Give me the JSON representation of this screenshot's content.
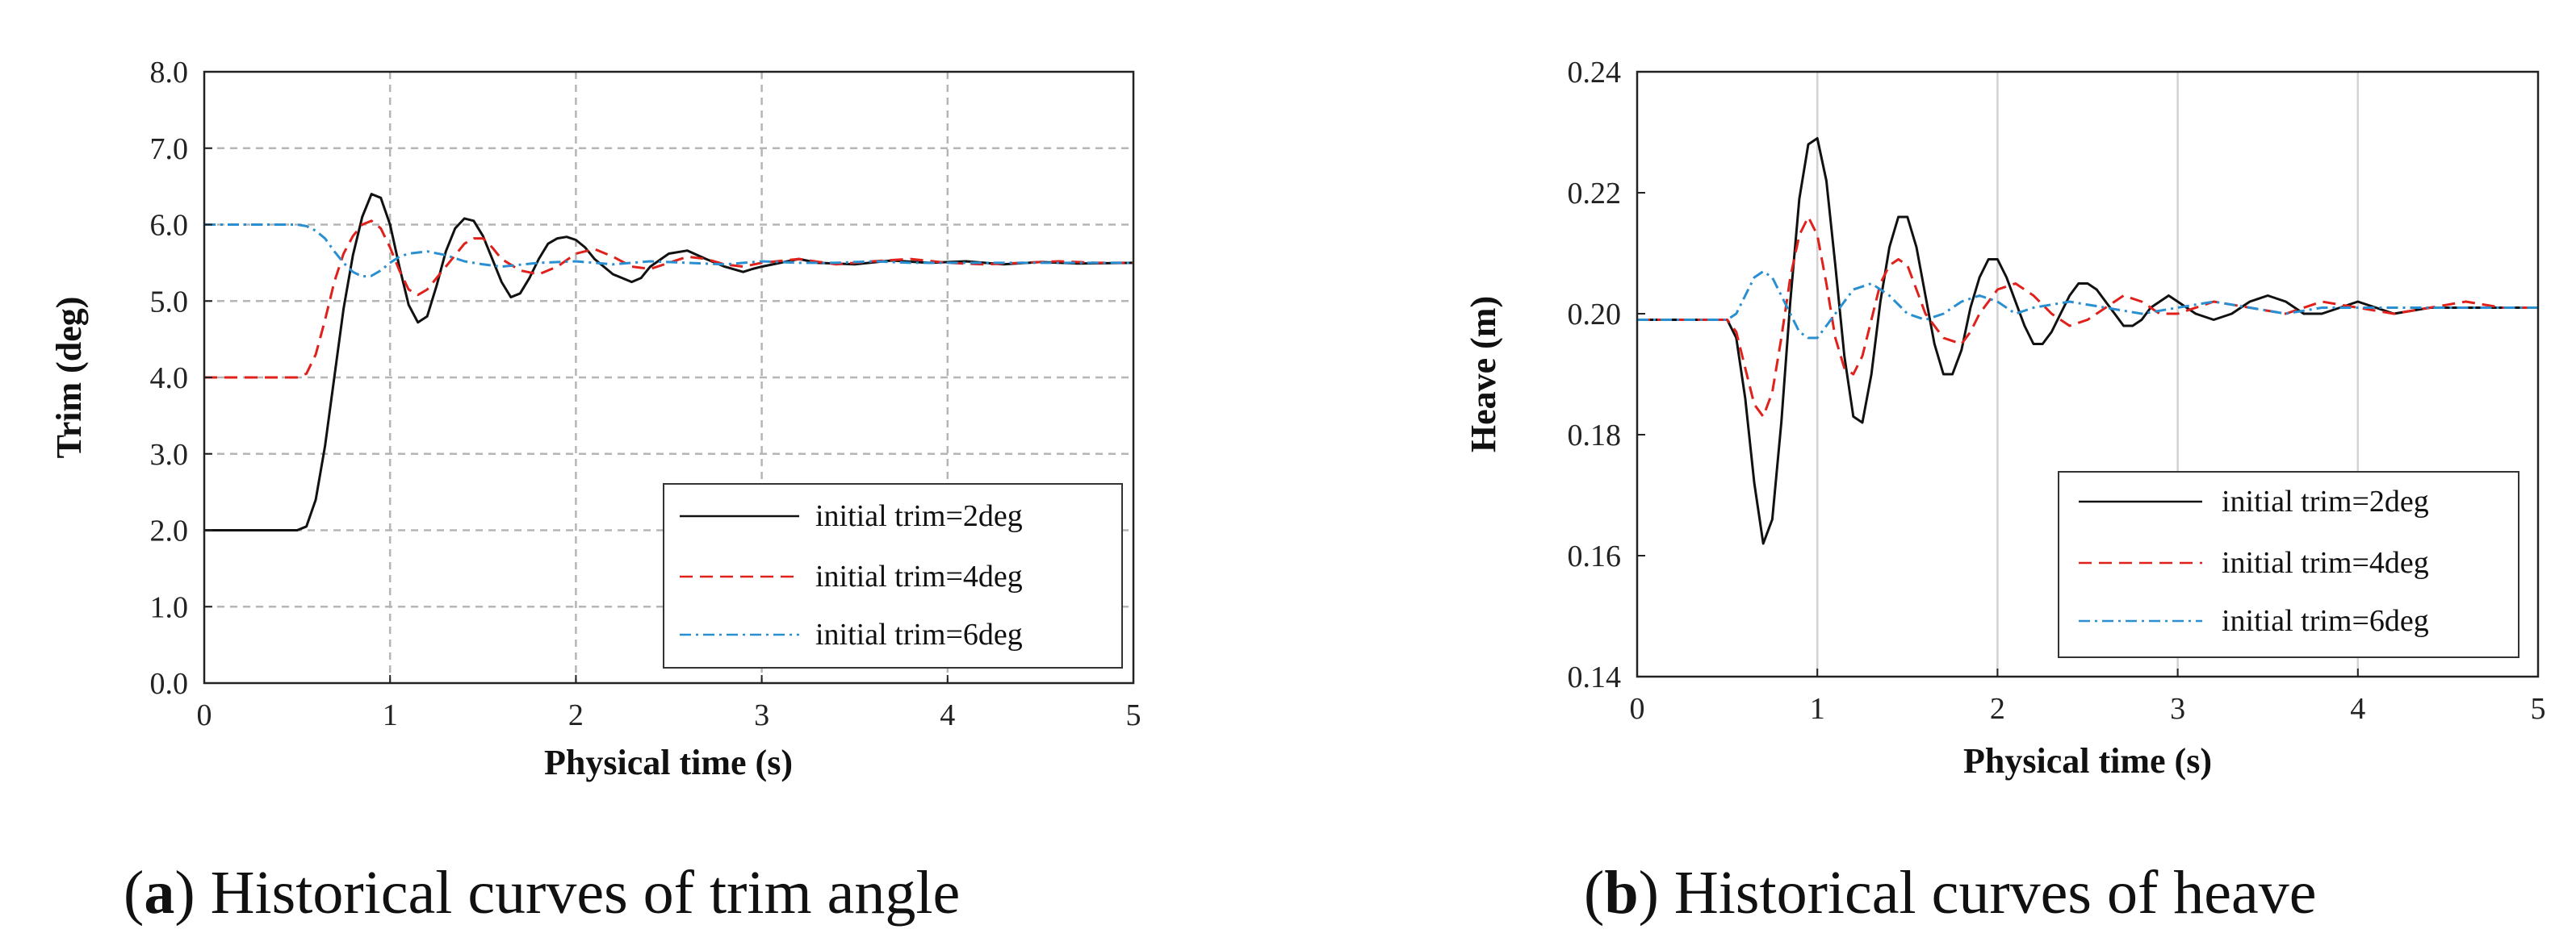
{
  "chart_data": [
    {
      "id": "a",
      "type": "line",
      "caption_letter": "a",
      "caption_text": "Historical curves of trim angle",
      "xlabel": "Physical time (s)",
      "ylabel": "Trim (deg)",
      "xlim": [
        0,
        5
      ],
      "ylim": [
        0,
        8
      ],
      "xticks": [
        "0",
        "1",
        "2",
        "3",
        "4",
        "5"
      ],
      "yticks": [
        "0.0",
        "1.0",
        "2.0",
        "3.0",
        "4.0",
        "5.0",
        "6.0",
        "7.0",
        "8.0"
      ],
      "grid": true,
      "legend_position": "bottom-right",
      "series": [
        {
          "name": "initial trim=2deg",
          "color": "#111111",
          "dash": "solid",
          "x": [
            0,
            0.5,
            0.55,
            0.6,
            0.65,
            0.7,
            0.75,
            0.8,
            0.85,
            0.9,
            0.95,
            1.0,
            1.05,
            1.1,
            1.15,
            1.2,
            1.25,
            1.3,
            1.35,
            1.4,
            1.45,
            1.5,
            1.55,
            1.6,
            1.65,
            1.7,
            1.75,
            1.8,
            1.85,
            1.9,
            1.95,
            2.0,
            2.05,
            2.1,
            2.2,
            2.3,
            2.35,
            2.4,
            2.5,
            2.6,
            2.7,
            2.8,
            2.9,
            2.95,
            3.0,
            3.1,
            3.2,
            3.3,
            3.5,
            3.7,
            3.9,
            4.1,
            4.3,
            4.5,
            4.7,
            5.0
          ],
          "y": [
            2.0,
            2.0,
            2.05,
            2.4,
            3.1,
            4.0,
            4.9,
            5.6,
            6.1,
            6.4,
            6.35,
            6.0,
            5.45,
            4.95,
            4.72,
            4.8,
            5.2,
            5.65,
            5.95,
            6.08,
            6.05,
            5.85,
            5.55,
            5.25,
            5.05,
            5.1,
            5.3,
            5.55,
            5.75,
            5.82,
            5.84,
            5.8,
            5.7,
            5.55,
            5.35,
            5.25,
            5.3,
            5.45,
            5.62,
            5.66,
            5.55,
            5.45,
            5.38,
            5.42,
            5.45,
            5.5,
            5.55,
            5.5,
            5.48,
            5.53,
            5.5,
            5.52,
            5.48,
            5.51,
            5.49,
            5.5
          ]
        },
        {
          "name": "initial trim=4deg",
          "color": "#e0201b",
          "dash": "dashed",
          "x": [
            0,
            0.5,
            0.55,
            0.6,
            0.65,
            0.7,
            0.75,
            0.8,
            0.85,
            0.9,
            0.95,
            1.0,
            1.05,
            1.1,
            1.15,
            1.2,
            1.3,
            1.4,
            1.45,
            1.5,
            1.55,
            1.6,
            1.7,
            1.8,
            1.9,
            2.0,
            2.1,
            2.2,
            2.3,
            2.4,
            2.5,
            2.6,
            2.7,
            2.8,
            2.9,
            3.0,
            3.2,
            3.4,
            3.6,
            3.8,
            4.0,
            4.2,
            4.4,
            4.6,
            4.8,
            5.0
          ],
          "y": [
            4.0,
            4.0,
            4.05,
            4.3,
            4.75,
            5.25,
            5.62,
            5.85,
            6.0,
            6.05,
            5.95,
            5.7,
            5.4,
            5.15,
            5.08,
            5.15,
            5.45,
            5.75,
            5.82,
            5.82,
            5.7,
            5.55,
            5.4,
            5.35,
            5.45,
            5.62,
            5.68,
            5.58,
            5.45,
            5.42,
            5.5,
            5.58,
            5.55,
            5.48,
            5.45,
            5.5,
            5.55,
            5.48,
            5.52,
            5.55,
            5.5,
            5.48,
            5.5,
            5.52,
            5.5,
            5.5
          ]
        },
        {
          "name": "initial trim=6deg",
          "color": "#2a8fd0",
          "dash": "dashdot",
          "x": [
            0,
            0.5,
            0.55,
            0.6,
            0.65,
            0.7,
            0.75,
            0.8,
            0.85,
            0.9,
            0.95,
            1.0,
            1.05,
            1.1,
            1.2,
            1.3,
            1.4,
            1.5,
            1.6,
            1.8,
            2.0,
            2.2,
            2.4,
            2.6,
            2.8,
            3.0,
            3.2,
            3.4,
            3.6,
            3.8,
            4.0,
            4.2,
            4.4,
            4.6,
            4.8,
            5.0
          ],
          "y": [
            6.0,
            6.0,
            5.98,
            5.92,
            5.82,
            5.65,
            5.5,
            5.38,
            5.32,
            5.33,
            5.4,
            5.5,
            5.58,
            5.62,
            5.65,
            5.6,
            5.52,
            5.48,
            5.45,
            5.5,
            5.52,
            5.48,
            5.52,
            5.5,
            5.48,
            5.52,
            5.5,
            5.5,
            5.52,
            5.5,
            5.5,
            5.5,
            5.5,
            5.5,
            5.5,
            5.5
          ]
        }
      ]
    },
    {
      "id": "b",
      "type": "line",
      "caption_letter": "b",
      "caption_text": "Historical curves of heave",
      "xlabel": "Physical time (s)",
      "ylabel": "Heave (m)",
      "xlim": [
        0,
        5
      ],
      "ylim": [
        0.14,
        0.24
      ],
      "xticks": [
        "0",
        "1",
        "2",
        "3",
        "4",
        "5"
      ],
      "yticks": [
        "0.14",
        "0.16",
        "0.18",
        "0.20",
        "0.22",
        "0.24"
      ],
      "grid": true,
      "legend_position": "bottom-right",
      "series": [
        {
          "name": "initial trim=2deg",
          "color": "#111111",
          "dash": "solid",
          "x": [
            0,
            0.5,
            0.55,
            0.6,
            0.65,
            0.7,
            0.75,
            0.8,
            0.85,
            0.9,
            0.95,
            1.0,
            1.05,
            1.1,
            1.15,
            1.2,
            1.25,
            1.3,
            1.35,
            1.4,
            1.45,
            1.5,
            1.55,
            1.6,
            1.65,
            1.7,
            1.75,
            1.8,
            1.85,
            1.9,
            1.95,
            2.0,
            2.05,
            2.1,
            2.15,
            2.2,
            2.25,
            2.3,
            2.35,
            2.4,
            2.45,
            2.5,
            2.55,
            2.6,
            2.65,
            2.7,
            2.75,
            2.8,
            2.85,
            2.9,
            2.95,
            3.0,
            3.1,
            3.2,
            3.3,
            3.4,
            3.5,
            3.6,
            3.7,
            3.8,
            3.9,
            4.0,
            4.2,
            4.4,
            4.6,
            4.8,
            5.0
          ],
          "y": [
            0.199,
            0.199,
            0.196,
            0.186,
            0.172,
            0.162,
            0.166,
            0.182,
            0.202,
            0.219,
            0.228,
            0.229,
            0.222,
            0.208,
            0.193,
            0.183,
            0.182,
            0.19,
            0.202,
            0.211,
            0.216,
            0.216,
            0.211,
            0.203,
            0.195,
            0.19,
            0.19,
            0.194,
            0.201,
            0.206,
            0.209,
            0.209,
            0.206,
            0.202,
            0.198,
            0.195,
            0.195,
            0.197,
            0.2,
            0.203,
            0.205,
            0.205,
            0.204,
            0.202,
            0.2,
            0.198,
            0.198,
            0.199,
            0.201,
            0.202,
            0.203,
            0.202,
            0.2,
            0.199,
            0.2,
            0.202,
            0.203,
            0.202,
            0.2,
            0.2,
            0.201,
            0.202,
            0.2,
            0.201,
            0.201,
            0.201,
            0.201
          ]
        },
        {
          "name": "initial trim=4deg",
          "color": "#e0201b",
          "dash": "dashed",
          "x": [
            0,
            0.5,
            0.55,
            0.6,
            0.65,
            0.7,
            0.75,
            0.8,
            0.85,
            0.9,
            0.95,
            1.0,
            1.05,
            1.1,
            1.15,
            1.2,
            1.25,
            1.3,
            1.35,
            1.4,
            1.45,
            1.5,
            1.55,
            1.6,
            1.7,
            1.8,
            1.85,
            1.9,
            2.0,
            2.1,
            2.2,
            2.3,
            2.4,
            2.5,
            2.6,
            2.7,
            2.8,
            2.9,
            3.0,
            3.2,
            3.4,
            3.6,
            3.8,
            4.0,
            4.2,
            4.4,
            4.6,
            4.8,
            5.0
          ],
          "y": [
            0.199,
            0.199,
            0.197,
            0.191,
            0.185,
            0.183,
            0.187,
            0.196,
            0.206,
            0.213,
            0.216,
            0.213,
            0.205,
            0.196,
            0.191,
            0.19,
            0.193,
            0.199,
            0.205,
            0.208,
            0.209,
            0.208,
            0.204,
            0.2,
            0.196,
            0.195,
            0.197,
            0.2,
            0.204,
            0.205,
            0.203,
            0.2,
            0.198,
            0.199,
            0.201,
            0.203,
            0.202,
            0.2,
            0.2,
            0.202,
            0.201,
            0.2,
            0.202,
            0.201,
            0.2,
            0.201,
            0.202,
            0.201,
            0.201
          ]
        },
        {
          "name": "initial trim=6deg",
          "color": "#2a8fd0",
          "dash": "dashdot",
          "x": [
            0,
            0.5,
            0.55,
            0.6,
            0.65,
            0.7,
            0.75,
            0.8,
            0.85,
            0.9,
            0.95,
            1.0,
            1.05,
            1.1,
            1.2,
            1.3,
            1.4,
            1.5,
            1.6,
            1.7,
            1.8,
            1.9,
            2.0,
            2.1,
            2.2,
            2.4,
            2.6,
            2.8,
            3.0,
            3.2,
            3.4,
            3.6,
            3.8,
            4.0,
            4.2,
            4.4,
            4.6,
            4.8,
            5.0
          ],
          "y": [
            0.199,
            0.199,
            0.2,
            0.203,
            0.206,
            0.207,
            0.206,
            0.203,
            0.2,
            0.197,
            0.196,
            0.196,
            0.198,
            0.2,
            0.204,
            0.205,
            0.203,
            0.2,
            0.199,
            0.2,
            0.202,
            0.203,
            0.202,
            0.2,
            0.201,
            0.202,
            0.201,
            0.2,
            0.201,
            0.202,
            0.201,
            0.2,
            0.201,
            0.201,
            0.201,
            0.201,
            0.201,
            0.201,
            0.201
          ]
        }
      ]
    }
  ]
}
